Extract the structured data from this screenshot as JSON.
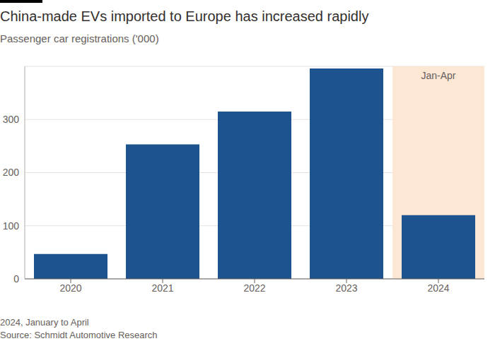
{
  "chart_data": {
    "type": "bar",
    "title": "China-made EVs imported to Europe has increased rapidly",
    "subtitle": "Passenger car registrations ('000)",
    "categories": [
      "2020",
      "2021",
      "2022",
      "2023",
      "2024"
    ],
    "values": [
      47,
      253,
      315,
      396,
      120
    ],
    "color": "#1d5490",
    "ylim": [
      0,
      400
    ],
    "yticks": [
      0,
      100,
      200,
      300
    ],
    "grid": true,
    "annotations": [
      {
        "x": "2024",
        "text": "Jan-Apr",
        "color": "#fce6d4"
      }
    ],
    "footnote": "2024, January to April",
    "source": "Source: Schmidt Automotive Research"
  }
}
